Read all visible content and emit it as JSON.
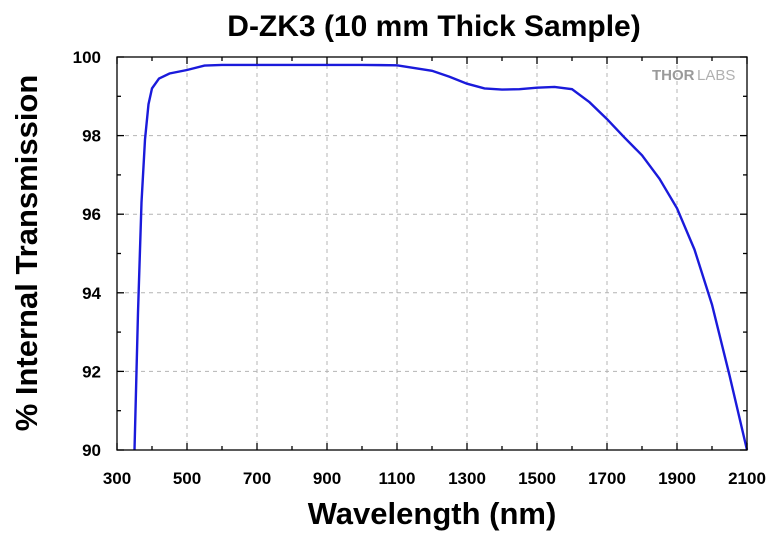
{
  "chart_data": {
    "type": "line",
    "title": "D-ZK3 (10 mm Thick Sample)",
    "xlabel": "Wavelength (nm)",
    "ylabel": "% Internal Transmission",
    "xlim": [
      300,
      2100
    ],
    "ylim": [
      90,
      100
    ],
    "xticks": [
      300,
      500,
      700,
      900,
      1100,
      1300,
      1500,
      1700,
      1900,
      2100
    ],
    "yticks": [
      90,
      92,
      94,
      96,
      98,
      100
    ],
    "grid": true,
    "series": [
      {
        "name": "D-ZK3",
        "color": "#1a1adb",
        "x": [
          350,
          360,
          370,
          380,
          390,
          400,
          420,
          450,
          500,
          550,
          600,
          700,
          800,
          900,
          1000,
          1100,
          1200,
          1250,
          1300,
          1350,
          1400,
          1450,
          1500,
          1550,
          1600,
          1650,
          1700,
          1750,
          1800,
          1850,
          1900,
          1950,
          2000,
          2050,
          2100
        ],
        "y": [
          90.0,
          93.5,
          96.3,
          97.9,
          98.8,
          99.2,
          99.45,
          99.58,
          99.67,
          99.78,
          99.8,
          99.8,
          99.8,
          99.8,
          99.8,
          99.79,
          99.65,
          99.5,
          99.32,
          99.2,
          99.17,
          99.18,
          99.22,
          99.24,
          99.18,
          98.85,
          98.42,
          97.95,
          97.5,
          96.9,
          96.15,
          95.1,
          93.7,
          91.9,
          89.9
        ]
      }
    ]
  },
  "watermark": {
    "part1": "THOR",
    "part2": "LABS"
  }
}
